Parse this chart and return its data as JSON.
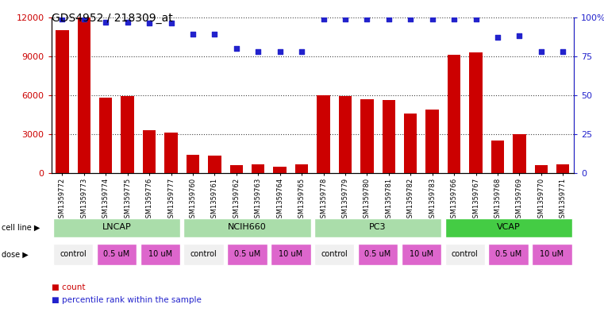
{
  "title": "GDS4952 / 218309_at",
  "samples": [
    "GSM1359772",
    "GSM1359773",
    "GSM1359774",
    "GSM1359775",
    "GSM1359776",
    "GSM1359777",
    "GSM1359760",
    "GSM1359761",
    "GSM1359762",
    "GSM1359763",
    "GSM1359764",
    "GSM1359765",
    "GSM1359778",
    "GSM1359779",
    "GSM1359780",
    "GSM1359781",
    "GSM1359782",
    "GSM1359783",
    "GSM1359766",
    "GSM1359767",
    "GSM1359768",
    "GSM1359769",
    "GSM1359770",
    "GSM1359771"
  ],
  "counts": [
    11000,
    12000,
    5800,
    5950,
    3300,
    3100,
    1400,
    1350,
    600,
    650,
    500,
    650,
    6000,
    5950,
    5700,
    5600,
    4600,
    4900,
    9100,
    9300,
    2500,
    3000,
    600,
    700
  ],
  "percentile_ranks": [
    99,
    99,
    97,
    97,
    96,
    96,
    89,
    89,
    80,
    78,
    78,
    78,
    99,
    99,
    99,
    99,
    99,
    99,
    99,
    99,
    87,
    88,
    78,
    78
  ],
  "cell_lines": [
    {
      "name": "LNCAP",
      "start": 0,
      "end": 5,
      "color": "#AADDAA"
    },
    {
      "name": "NCIH660",
      "start": 6,
      "end": 11,
      "color": "#AADDAA"
    },
    {
      "name": "PC3",
      "start": 12,
      "end": 17,
      "color": "#AADDAA"
    },
    {
      "name": "VCAP",
      "start": 18,
      "end": 23,
      "color": "#44CC44"
    }
  ],
  "doses": [
    {
      "name": "control",
      "start": 0,
      "end": 1,
      "color": "#F0F0F0"
    },
    {
      "name": "0.5 uM",
      "start": 2,
      "end": 3,
      "color": "#DD66CC"
    },
    {
      "name": "10 uM",
      "start": 4,
      "end": 5,
      "color": "#DD66CC"
    },
    {
      "name": "control",
      "start": 6,
      "end": 7,
      "color": "#F0F0F0"
    },
    {
      "name": "0.5 uM",
      "start": 8,
      "end": 9,
      "color": "#DD66CC"
    },
    {
      "name": "10 uM",
      "start": 10,
      "end": 11,
      "color": "#DD66CC"
    },
    {
      "name": "control",
      "start": 12,
      "end": 13,
      "color": "#F0F0F0"
    },
    {
      "name": "0.5 uM",
      "start": 14,
      "end": 15,
      "color": "#DD66CC"
    },
    {
      "name": "10 uM",
      "start": 16,
      "end": 17,
      "color": "#DD66CC"
    },
    {
      "name": "control",
      "start": 18,
      "end": 19,
      "color": "#F0F0F0"
    },
    {
      "name": "0.5 uM",
      "start": 20,
      "end": 21,
      "color": "#DD66CC"
    },
    {
      "name": "10 uM",
      "start": 22,
      "end": 23,
      "color": "#DD66CC"
    }
  ],
  "bar_color": "#CC0000",
  "dot_color": "#2222CC",
  "ylim_left": [
    0,
    12000
  ],
  "ylim_right": [
    0,
    100
  ],
  "yticks_left": [
    0,
    3000,
    6000,
    9000,
    12000
  ],
  "yticks_right": [
    0,
    25,
    50,
    75,
    100
  ]
}
